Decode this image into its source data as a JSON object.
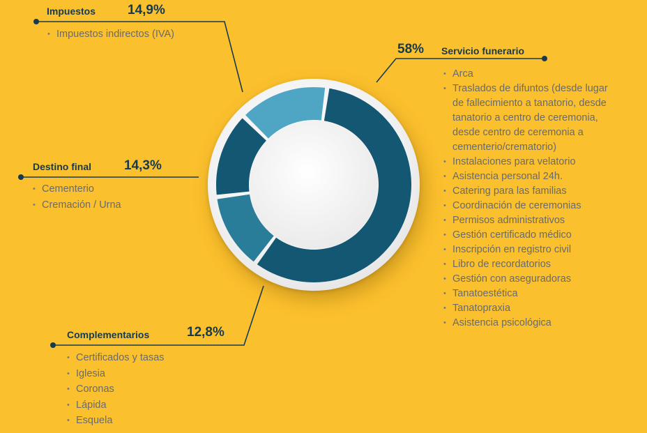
{
  "colors": {
    "background": "#FBC02D",
    "dark_teal": "#145773",
    "medium_teal": "#2A7D99",
    "light_teal": "#4EA6C4",
    "text_dark": "#163A50",
    "text_gray": "#6A6A6A"
  },
  "chart_data": {
    "type": "pie",
    "categories": [
      "Servicio funerario",
      "Impuestos",
      "Destino final",
      "Complementarios"
    ],
    "values": [
      58,
      14.9,
      14.3,
      12.8
    ],
    "value_labels": [
      "58%",
      "14,9%",
      "14,3%",
      "12,8%"
    ],
    "donut": true
  },
  "impuestos": {
    "title": "Impuestos",
    "pct": "14,9%",
    "items": [
      "Impuestos indirectos (IVA)"
    ]
  },
  "servicio": {
    "title": "Servicio funerario",
    "pct": "58%",
    "items": [
      "Arca",
      "Traslados de difuntos (desde lugar de fallecimiento a tanatorio, desde tanatorio a centro de ceremonia, desde centro de ceremonia a cementerio/crematorio)",
      "Instalaciones para velatorio",
      "Asistencia personal 24h.",
      "Catering para las familias",
      "Coordinación de ceremonias",
      "Permisos administrativos",
      "Gestión certificado médico",
      "Inscripción en registro civil",
      "Libro de recordatorios",
      "Gestión con aseguradoras",
      "Tanatoestética",
      "Tanatopraxia",
      "Asistencia psicológica"
    ]
  },
  "destino": {
    "title": "Destino final",
    "pct": "14,3%",
    "items": [
      "Cementerio",
      "Cremación / Urna"
    ]
  },
  "complementarios": {
    "title": "Complementarios",
    "pct": "12,8%",
    "items": [
      "Certificados y tasas",
      "Iglesia",
      "Coronas",
      "Lápida",
      "Esquela"
    ]
  }
}
